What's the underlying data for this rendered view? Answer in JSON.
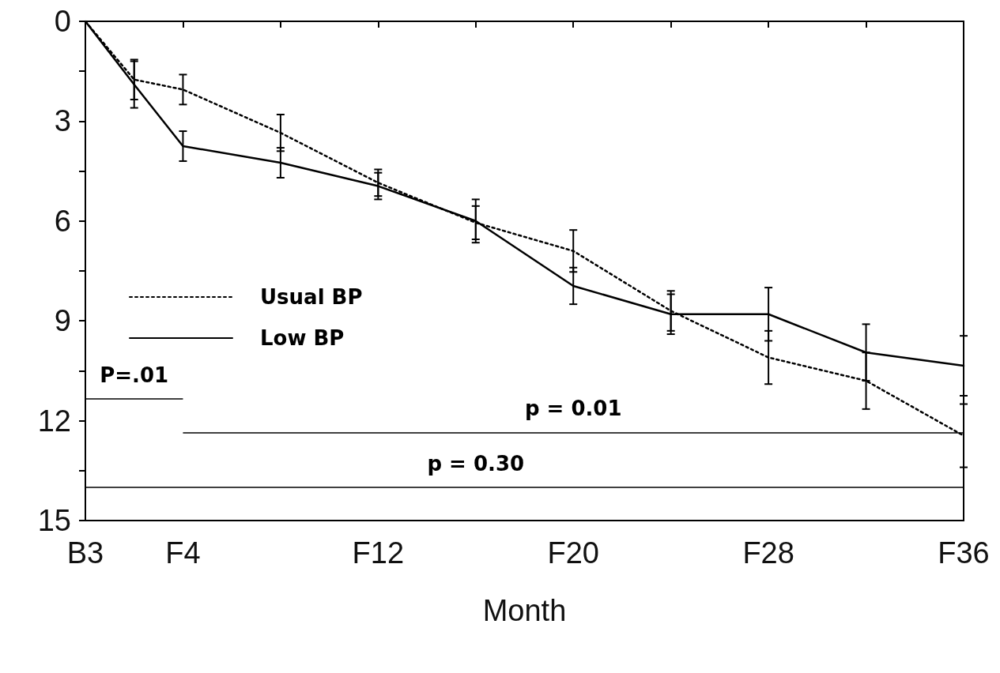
{
  "chart_data": {
    "type": "line",
    "xlabel": "Month",
    "categories": [
      "B3",
      null,
      "F4",
      null,
      null,
      null,
      "F12",
      null,
      null,
      null,
      "F20",
      null,
      null,
      null,
      "F28",
      null,
      null,
      null,
      "F36"
    ],
    "series": [
      {
        "name": "Usual BP",
        "color": "#000000",
        "line_style": "dotted",
        "values": [
          0,
          1.75,
          2.05,
          null,
          3.35,
          null,
          4.85,
          null,
          6.05,
          null,
          6.9,
          null,
          8.7,
          null,
          10.1,
          null,
          10.8,
          null,
          12.45
        ],
        "errors": [
          null,
          0.6,
          0.45,
          null,
          0.55,
          null,
          0.4,
          null,
          0.5,
          null,
          0.63,
          null,
          0.6,
          null,
          0.8,
          null,
          0.85,
          null,
          0.95
        ]
      },
      {
        "name": "Low BP",
        "color": "#000000",
        "line_style": "solid",
        "values": [
          0,
          1.9,
          3.75,
          null,
          4.25,
          null,
          4.95,
          null,
          6.0,
          null,
          7.95,
          null,
          8.8,
          null,
          8.8,
          null,
          9.95,
          null,
          10.35
        ],
        "errors": [
          null,
          0.7,
          0.45,
          null,
          0.45,
          null,
          0.4,
          null,
          0.65,
          null,
          0.55,
          null,
          0.6,
          null,
          0.8,
          null,
          0.85,
          null,
          0.9
        ]
      }
    ],
    "ylim": [
      15,
      0
    ],
    "yticks": [
      0,
      {
        "value": 1.5,
        "label": null
      },
      3,
      {
        "value": 4.5,
        "label": null
      },
      6,
      {
        "value": 7.5,
        "label": null
      },
      9,
      {
        "value": 10.5,
        "label": null
      },
      12,
      {
        "value": 13.5,
        "label": null
      },
      15
    ],
    "ref_lines": [
      {
        "axis": "y",
        "value": 11.35
      },
      {
        "axis": "y",
        "value": 12.35
      },
      {
        "axis": "y",
        "value": 14.0
      }
    ],
    "annotations": [
      "P=.01",
      "p = 0.01",
      "p = 0.30"
    ],
    "legend": "left",
    "marker": "none",
    "grid": false
  }
}
